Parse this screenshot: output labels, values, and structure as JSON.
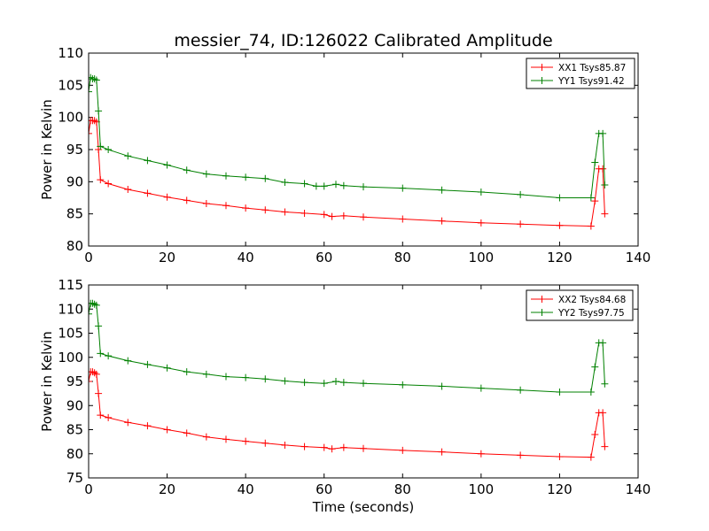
{
  "figure": {
    "title": "messier_74, ID:126022 Calibrated Amplitude",
    "xlabel": "Time (seconds)"
  },
  "colors": {
    "series1": "#ff0000",
    "series2": "#008000"
  },
  "chart_data": [
    {
      "type": "line",
      "ylabel": "Power in Kelvin",
      "xlim": [
        0,
        140
      ],
      "ylim": [
        80,
        110
      ],
      "xticks": [
        "0",
        "20",
        "40",
        "60",
        "80",
        "100",
        "120",
        "140"
      ],
      "yticks": [
        "80",
        "85",
        "90",
        "95",
        "100",
        "105",
        "110"
      ],
      "legend_position": "top-right",
      "grid": false,
      "series": [
        {
          "name": "XX1 Tsys85.87",
          "color": "#ff0000",
          "marker": "+",
          "points": [
            [
              0,
              97.5
            ],
            [
              0.5,
              99.5
            ],
            [
              1,
              99.5
            ],
            [
              1.5,
              99.5
            ],
            [
              2,
              99.3
            ],
            [
              2.5,
              95.0
            ],
            [
              3,
              90.3
            ],
            [
              5,
              89.7
            ],
            [
              10,
              88.8
            ],
            [
              15,
              88.2
            ],
            [
              20,
              87.6
            ],
            [
              25,
              87.1
            ],
            [
              30,
              86.6
            ],
            [
              35,
              86.3
            ],
            [
              40,
              85.9
            ],
            [
              45,
              85.6
            ],
            [
              50,
              85.3
            ],
            [
              55,
              85.1
            ],
            [
              60,
              84.9
            ],
            [
              62,
              84.6
            ],
            [
              65,
              84.7
            ],
            [
              70,
              84.5
            ],
            [
              80,
              84.2
            ],
            [
              90,
              83.9
            ],
            [
              100,
              83.6
            ],
            [
              110,
              83.4
            ],
            [
              120,
              83.2
            ],
            [
              128,
              83.1
            ],
            [
              129,
              87.0
            ],
            [
              130,
              92.0
            ],
            [
              131,
              92.0
            ],
            [
              131.5,
              85.0
            ]
          ]
        },
        {
          "name": "YY1 Tsys91.42",
          "color": "#008000",
          "marker": "+",
          "points": [
            [
              0,
              104.0
            ],
            [
              0.5,
              106.2
            ],
            [
              1,
              106.0
            ],
            [
              1.5,
              106.0
            ],
            [
              2,
              105.8
            ],
            [
              2.5,
              101.0
            ],
            [
              3,
              95.5
            ],
            [
              5,
              95.0
            ],
            [
              10,
              94.0
            ],
            [
              15,
              93.3
            ],
            [
              20,
              92.6
            ],
            [
              25,
              91.8
            ],
            [
              30,
              91.2
            ],
            [
              35,
              90.9
            ],
            [
              40,
              90.7
            ],
            [
              45,
              90.5
            ],
            [
              50,
              89.9
            ],
            [
              55,
              89.7
            ],
            [
              58,
              89.3
            ],
            [
              60,
              89.3
            ],
            [
              63,
              89.6
            ],
            [
              65,
              89.4
            ],
            [
              70,
              89.2
            ],
            [
              80,
              89.0
            ],
            [
              90,
              88.7
            ],
            [
              100,
              88.4
            ],
            [
              110,
              88.0
            ],
            [
              120,
              87.5
            ],
            [
              128,
              87.5
            ],
            [
              129,
              93.0
            ],
            [
              130,
              97.5
            ],
            [
              131,
              97.5
            ],
            [
              131.5,
              89.5
            ]
          ]
        }
      ]
    },
    {
      "type": "line",
      "ylabel": "Power in Kelvin",
      "xlim": [
        0,
        140
      ],
      "ylim": [
        75,
        115
      ],
      "xticks": [
        "0",
        "20",
        "40",
        "60",
        "80",
        "100",
        "120",
        "140"
      ],
      "yticks": [
        "75",
        "80",
        "85",
        "90",
        "95",
        "100",
        "105",
        "110",
        "115"
      ],
      "legend_position": "top-right",
      "grid": false,
      "series": [
        {
          "name": "XX2 Tsys84.68",
          "color": "#ff0000",
          "marker": "+",
          "points": [
            [
              0,
              95.0
            ],
            [
              0.5,
              97.0
            ],
            [
              1,
              97.0
            ],
            [
              1.5,
              96.8
            ],
            [
              2,
              96.5
            ],
            [
              2.5,
              92.5
            ],
            [
              3,
              88.0
            ],
            [
              5,
              87.5
            ],
            [
              10,
              86.5
            ],
            [
              15,
              85.8
            ],
            [
              20,
              85.0
            ],
            [
              25,
              84.3
            ],
            [
              30,
              83.5
            ],
            [
              35,
              83.0
            ],
            [
              40,
              82.6
            ],
            [
              45,
              82.2
            ],
            [
              50,
              81.8
            ],
            [
              55,
              81.5
            ],
            [
              60,
              81.3
            ],
            [
              62,
              81.0
            ],
            [
              65,
              81.3
            ],
            [
              70,
              81.1
            ],
            [
              80,
              80.7
            ],
            [
              90,
              80.4
            ],
            [
              100,
              80.0
            ],
            [
              110,
              79.7
            ],
            [
              120,
              79.4
            ],
            [
              128,
              79.3
            ],
            [
              129,
              84.0
            ],
            [
              130,
              88.5
            ],
            [
              131,
              88.5
            ],
            [
              131.5,
              81.5
            ]
          ]
        },
        {
          "name": "YY2 Tsys97.75",
          "color": "#008000",
          "marker": "+",
          "points": [
            [
              0,
              109.0
            ],
            [
              0.5,
              111.2
            ],
            [
              1,
              111.2
            ],
            [
              1.5,
              111.0
            ],
            [
              2,
              110.8
            ],
            [
              2.5,
              106.5
            ],
            [
              3,
              100.8
            ],
            [
              5,
              100.3
            ],
            [
              10,
              99.3
            ],
            [
              15,
              98.5
            ],
            [
              20,
              97.8
            ],
            [
              25,
              97.0
            ],
            [
              30,
              96.5
            ],
            [
              35,
              96.0
            ],
            [
              40,
              95.8
            ],
            [
              45,
              95.5
            ],
            [
              50,
              95.1
            ],
            [
              55,
              94.8
            ],
            [
              60,
              94.6
            ],
            [
              63,
              95.0
            ],
            [
              65,
              94.8
            ],
            [
              70,
              94.6
            ],
            [
              80,
              94.3
            ],
            [
              90,
              94.0
            ],
            [
              100,
              93.6
            ],
            [
              110,
              93.2
            ],
            [
              120,
              92.8
            ],
            [
              128,
              92.8
            ],
            [
              129,
              98.0
            ],
            [
              130,
              103.0
            ],
            [
              131,
              103.0
            ],
            [
              131.5,
              94.5
            ]
          ]
        }
      ]
    }
  ]
}
